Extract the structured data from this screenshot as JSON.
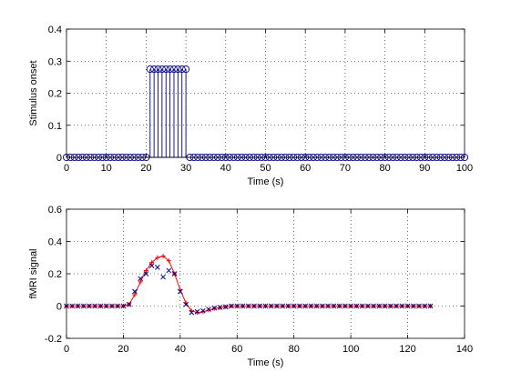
{
  "figure": {
    "background": "#ffffff",
    "axes_color": "#000000"
  },
  "chart_data": [
    {
      "type": "stem",
      "xlabel": "Time (s)",
      "ylabel": "Stimulus onset",
      "xlim": [
        0,
        100
      ],
      "ylim": [
        0,
        0.4
      ],
      "xticks": [
        0,
        10,
        20,
        30,
        40,
        50,
        60,
        70,
        80,
        90,
        100
      ],
      "yticks": [
        0,
        0.1,
        0.2,
        0.3,
        0.4
      ],
      "ytick_labels": [
        "0",
        "0.1",
        "0.2",
        "0.3",
        "0.4"
      ],
      "grid": true,
      "color": "#00007f",
      "series": [
        {
          "marker": "circle",
          "x": [
            0,
            1,
            2,
            3,
            4,
            5,
            6,
            7,
            8,
            9,
            10,
            11,
            12,
            13,
            14,
            15,
            16,
            17,
            18,
            19,
            20,
            21,
            22,
            23,
            24,
            25,
            26,
            27,
            28,
            29,
            30,
            31,
            32,
            33,
            34,
            35,
            36,
            37,
            38,
            39,
            40,
            41,
            42,
            43,
            44,
            45,
            46,
            47,
            48,
            49,
            50,
            51,
            52,
            53,
            54,
            55,
            56,
            57,
            58,
            59,
            60,
            61,
            62,
            63,
            64,
            65,
            66,
            67,
            68,
            69,
            70,
            71,
            72,
            73,
            74,
            75,
            76,
            77,
            78,
            79,
            80,
            81,
            82,
            83,
            84,
            85,
            86,
            87,
            88,
            89,
            90,
            91,
            92,
            93,
            94,
            95,
            96,
            97,
            98,
            99,
            100
          ],
          "y": [
            0,
            0,
            0,
            0,
            0,
            0,
            0,
            0,
            0,
            0,
            0,
            0,
            0,
            0,
            0,
            0,
            0,
            0,
            0,
            0,
            0,
            0.275,
            0.275,
            0.275,
            0.275,
            0.275,
            0.275,
            0.275,
            0.275,
            0.275,
            0.275,
            0,
            0,
            0,
            0,
            0,
            0,
            0,
            0,
            0,
            0,
            0,
            0,
            0,
            0,
            0,
            0,
            0,
            0,
            0,
            0,
            0,
            0,
            0,
            0,
            0,
            0,
            0,
            0,
            0,
            0,
            0,
            0,
            0,
            0,
            0,
            0,
            0,
            0,
            0,
            0,
            0,
            0,
            0,
            0,
            0,
            0,
            0,
            0,
            0,
            0,
            0,
            0,
            0,
            0,
            0,
            0,
            0,
            0,
            0,
            0,
            0,
            0,
            0,
            0,
            0,
            0,
            0,
            0,
            0,
            0
          ]
        }
      ]
    },
    {
      "type": "line",
      "xlabel": "Time (s)",
      "ylabel": "fMRI signal",
      "xlim": [
        0,
        140
      ],
      "ylim": [
        -0.2,
        0.6
      ],
      "xticks": [
        0,
        20,
        40,
        60,
        80,
        100,
        120,
        140
      ],
      "yticks": [
        -0.2,
        0,
        0.2,
        0.4,
        0.6
      ],
      "ytick_labels": [
        "-0.2",
        "0",
        "0.2",
        "0.4",
        "0.6"
      ],
      "grid": true,
      "series": [
        {
          "style": "line-with-plus",
          "color": "#ff0000",
          "x": [
            0,
            2,
            4,
            6,
            8,
            10,
            12,
            14,
            16,
            18,
            20,
            22,
            24,
            26,
            28,
            30,
            32,
            34,
            36,
            38,
            40,
            42,
            44,
            46,
            48,
            50,
            52,
            54,
            56,
            58,
            60,
            62,
            64,
            66,
            68,
            70,
            72,
            74,
            76,
            78,
            80,
            82,
            84,
            86,
            88,
            90,
            92,
            94,
            96,
            98,
            100,
            102,
            104,
            106,
            108,
            110,
            112,
            114,
            116,
            118,
            120,
            122,
            124,
            126,
            128
          ],
          "y": [
            0,
            0,
            0,
            0,
            0,
            0,
            0,
            0,
            0,
            0,
            0,
            0.01,
            0.07,
            0.15,
            0.22,
            0.27,
            0.3,
            0.31,
            0.28,
            0.2,
            0.1,
            0.02,
            -0.03,
            -0.04,
            -0.035,
            -0.025,
            -0.015,
            -0.01,
            -0.005,
            0,
            0,
            0,
            0,
            0,
            0,
            0,
            0,
            0,
            0,
            0,
            0,
            0,
            0,
            0,
            0,
            0,
            0,
            0,
            0,
            0,
            0,
            0,
            0,
            0,
            0,
            0,
            0,
            0,
            0,
            0,
            0,
            0,
            0,
            0,
            0
          ]
        },
        {
          "style": "markers-x",
          "color": "#00007f",
          "x": [
            0,
            2,
            4,
            6,
            8,
            10,
            12,
            14,
            16,
            18,
            20,
            22,
            24,
            26,
            28,
            30,
            32,
            34,
            36,
            38,
            40,
            42,
            44,
            46,
            48,
            50,
            52,
            54,
            56,
            58,
            60,
            62,
            64,
            66,
            68,
            70,
            72,
            74,
            76,
            78,
            80,
            82,
            84,
            86,
            88,
            90,
            92,
            94,
            96,
            98,
            100,
            102,
            104,
            106,
            108,
            110,
            112,
            114,
            116,
            118,
            120,
            122,
            124,
            126,
            128
          ],
          "y": [
            0,
            0,
            0,
            0,
            0,
            0,
            0,
            0,
            0,
            0,
            0,
            0.01,
            0.09,
            0.17,
            0.2,
            0.25,
            0.24,
            0.18,
            0.22,
            0.2,
            0.09,
            0.01,
            -0.04,
            -0.035,
            -0.03,
            -0.02,
            -0.012,
            -0.008,
            -0.005,
            0,
            0,
            0,
            0,
            0,
            0,
            0,
            0,
            0,
            0,
            0,
            0,
            0,
            0,
            0,
            0,
            0,
            0,
            0,
            0,
            0,
            0,
            0,
            0,
            0,
            0,
            0,
            0,
            0,
            0,
            0,
            0,
            0,
            0,
            0,
            0
          ]
        }
      ]
    }
  ]
}
